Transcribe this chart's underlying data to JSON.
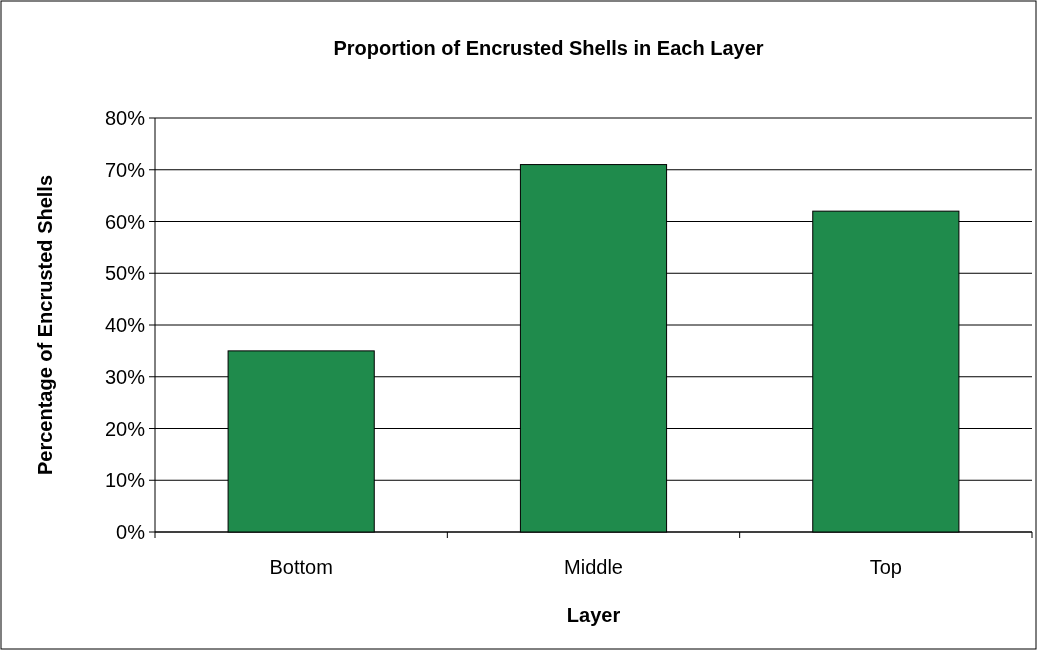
{
  "chart_data": {
    "type": "bar",
    "title": "Proportion of Encrusted Shells in Each Layer",
    "xlabel": "Layer",
    "ylabel": "Percentage of Encrusted Shells",
    "categories": [
      "Bottom",
      "Middle",
      "Top"
    ],
    "values": [
      35,
      71,
      62
    ],
    "color": "#1f8b4c",
    "ylim": [
      0,
      80
    ],
    "yticks": [
      {
        "value": 0,
        "label": "0%"
      },
      {
        "value": 10,
        "label": "10%"
      },
      {
        "value": 20,
        "label": "20%"
      },
      {
        "value": 30,
        "label": "30%"
      },
      {
        "value": 40,
        "label": "40%"
      },
      {
        "value": 50,
        "label": "50%"
      },
      {
        "value": 60,
        "label": "60%"
      },
      {
        "value": 70,
        "label": "70%"
      },
      {
        "value": 80,
        "label": "80%"
      }
    ],
    "grid": "y"
  }
}
